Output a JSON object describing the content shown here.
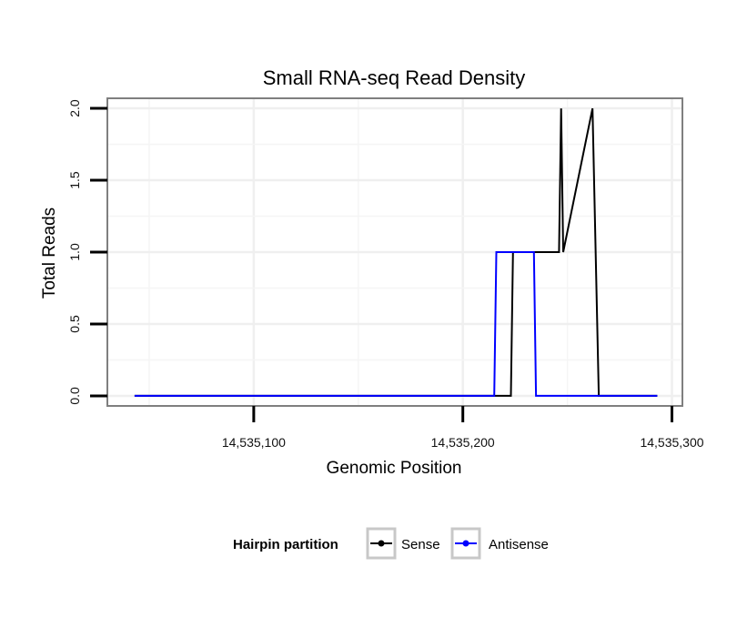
{
  "chart_data": {
    "type": "line",
    "title": "Small RNA-seq Read Density",
    "xlabel": "Genomic Position",
    "ylabel": "Total Reads",
    "xlim": [
      14535030,
      14535305
    ],
    "ylim": [
      -0.07,
      2.07
    ],
    "x_ticks": [
      14535100,
      14535200,
      14535300
    ],
    "x_tick_labels": [
      "14,535,100",
      "14,535,200",
      "14,535,300"
    ],
    "y_ticks": [
      0,
      0.5,
      1,
      1.5,
      2
    ],
    "y_tick_labels": [
      "0.0",
      "0.5",
      "1.0",
      "1.5",
      "2.0"
    ],
    "grid": true,
    "legend": {
      "title": "Hairpin partition",
      "position": "bottom",
      "entries": [
        "Sense",
        "Antisense"
      ]
    },
    "series": [
      {
        "name": "Sense",
        "color": "#000000",
        "x": [
          14535043,
          14535223,
          14535224,
          14535246,
          14535247,
          14535248,
          14535262,
          14535265,
          14535293
        ],
        "y": [
          0,
          0,
          1,
          1,
          2,
          1,
          2,
          0,
          0
        ]
      },
      {
        "name": "Antisense",
        "color": "#0000ff",
        "x": [
          14535043,
          14535215,
          14535216,
          14535234,
          14535235,
          14535293
        ],
        "y": [
          0,
          0,
          1,
          1,
          0,
          0
        ]
      }
    ]
  }
}
